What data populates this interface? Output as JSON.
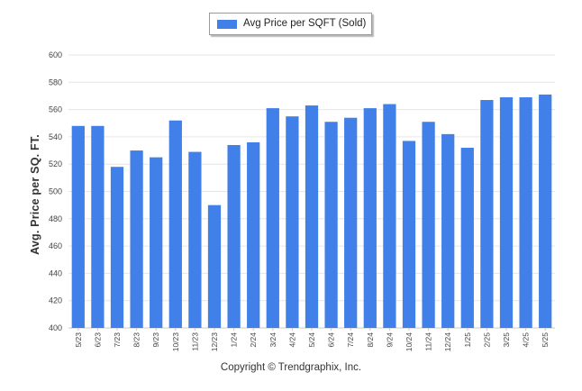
{
  "chart_data": {
    "type": "bar",
    "legend": "Avg Price per SQFT (Sold)",
    "legend_position": "top-center",
    "ylabel": "Avg. Price per SQ. FT.",
    "xlabel": "",
    "ylim": [
      400,
      600
    ],
    "yticks": [
      400,
      420,
      440,
      460,
      480,
      500,
      520,
      540,
      560,
      580,
      600
    ],
    "grid": true,
    "bar_color": "#4180e8",
    "categories": [
      "5/23",
      "6/23",
      "7/23",
      "8/23",
      "9/23",
      "10/23",
      "11/23",
      "12/23",
      "1/24",
      "2/24",
      "3/24",
      "4/24",
      "5/24",
      "6/24",
      "7/24",
      "8/24",
      "9/24",
      "10/24",
      "11/24",
      "12/24",
      "1/25",
      "2/25",
      "3/25",
      "4/25",
      "5/25"
    ],
    "series": [
      {
        "name": "Avg Price per SQFT (Sold)",
        "values": [
          548,
          548,
          518,
          530,
          525,
          552,
          529,
          490,
          534,
          536,
          561,
          555,
          563,
          551,
          554,
          561,
          564,
          537,
          551,
          542,
          532,
          567,
          569,
          569,
          571
        ]
      }
    ]
  },
  "footer": {
    "copyright": "Copyright © Trendgraphix, Inc."
  }
}
